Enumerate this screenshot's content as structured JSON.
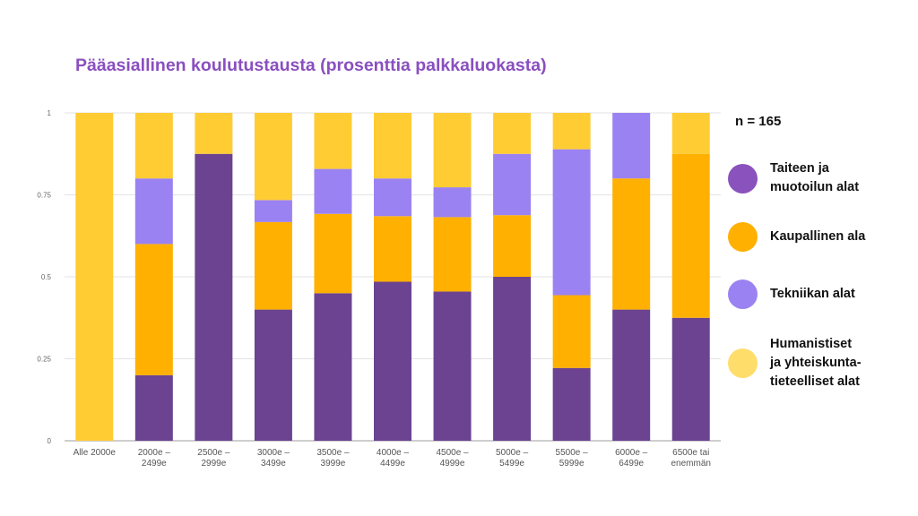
{
  "title": "Pääasiallinen koulutustausta (prosenttia palkkaluokasta)",
  "n_label": "n = 165",
  "legend": [
    {
      "label": "Taiteen ja\nmuotoilun alat",
      "color": "#6b4391",
      "swatch_color": "#8a52bd"
    },
    {
      "label": "Kaupallinen ala",
      "color": "#ffb000"
    },
    {
      "label": "Tekniikan alat",
      "color": "#9b82f2"
    },
    {
      "label": "Humanistiset\nja yhteiskunta-\ntieteelliset alat",
      "color": "#ffcc33",
      "swatch_color": "#ffdd6b"
    }
  ],
  "chart_data": {
    "type": "bar",
    "stacked": true,
    "categories": [
      "Alle 2000e",
      "2000e –\n2499e",
      "2500e –\n2999e",
      "3000e –\n3499e",
      "3500e –\n3999e",
      "4000e –\n4499e",
      "4500e –\n4999e",
      "5000e –\n5499e",
      "5500e –\n5999e",
      "6000e –\n6499e",
      "6500e tai\nenemmän"
    ],
    "series": [
      {
        "name": "Taiteen ja muotoilun alat",
        "color": "#6b4391",
        "values": [
          0,
          0.2,
          0.875,
          0.4,
          0.45,
          0.485,
          0.455,
          0.5,
          0.222,
          0.4,
          0.375
        ]
      },
      {
        "name": "Kaupallinen ala",
        "color": "#ffb000",
        "values": [
          0,
          0.4,
          0,
          0.267,
          0.242,
          0.2,
          0.227,
          0.188,
          0.222,
          0.4,
          0.5
        ]
      },
      {
        "name": "Tekniikan alat",
        "color": "#9b82f2",
        "values": [
          0,
          0.2,
          0,
          0.067,
          0.137,
          0.115,
          0.091,
          0.187,
          0.445,
          0.2,
          0
        ]
      },
      {
        "name": "Humanistiset ja yhteiskuntatieteelliset alat",
        "color": "#ffcc33",
        "values": [
          1,
          0.2,
          0.125,
          0.266,
          0.171,
          0.2,
          0.227,
          0.125,
          0.111,
          0,
          0.125
        ]
      }
    ],
    "yticks": [
      "0",
      "0.25",
      "0.5",
      "0.75",
      "1"
    ],
    "ylim": [
      0,
      1
    ],
    "grid": true,
    "legend_position": "right"
  }
}
